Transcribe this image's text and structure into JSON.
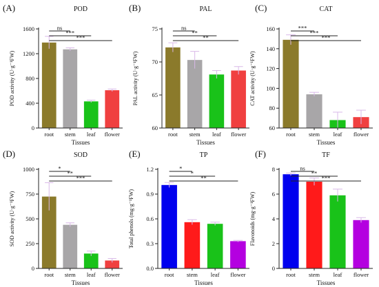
{
  "chart_data": [
    {
      "type": "bar",
      "panel": "(A)",
      "title": "POD",
      "xlabel": "Tissues",
      "ylabel": "POD activity (U·g⁻¹FW)",
      "ylim": [
        0,
        1600
      ],
      "yticks": [
        0,
        400,
        800,
        1200,
        1600
      ],
      "categories": [
        "root",
        "stem",
        "leaf",
        "flower"
      ],
      "category_colors": [
        "#111111",
        "#111111",
        "#0a8f0a",
        "#c0005a"
      ],
      "bar_colors": [
        "#8b7a2b",
        "#a8a6a8",
        "#19c219",
        "#f04040"
      ],
      "values": [
        1380,
        1270,
        430,
        610
      ],
      "errors": [
        100,
        25,
        20,
        20
      ],
      "significance": [
        {
          "from": "root",
          "to": "stem",
          "label": "ns"
        },
        {
          "from": "root",
          "to": "leaf",
          "label": "***"
        },
        {
          "from": "root",
          "to": "flower",
          "label": "***"
        }
      ]
    },
    {
      "type": "bar",
      "panel": "(B)",
      "title": "PAL",
      "xlabel": "Tissues",
      "ylabel": "PAL activity (U·g⁻¹FW)",
      "ylim": [
        60,
        75
      ],
      "yticks": [
        60,
        65,
        70,
        75
      ],
      "categories": [
        "root",
        "stem",
        "leaf",
        "flower"
      ],
      "category_colors": [
        "#111111",
        "#111111",
        "#0a8f0a",
        "#c0005a"
      ],
      "bar_colors": [
        "#8b7a2b",
        "#a8a6a8",
        "#19c219",
        "#f04040"
      ],
      "values": [
        72.2,
        70.3,
        68.1,
        68.7
      ],
      "errors": [
        0.7,
        1.3,
        0.6,
        0.6
      ],
      "significance": [
        {
          "from": "root",
          "to": "stem",
          "label": "ns"
        },
        {
          "from": "root",
          "to": "leaf",
          "label": "**"
        },
        {
          "from": "root",
          "to": "flower",
          "label": "**"
        }
      ]
    },
    {
      "type": "bar",
      "panel": "(C)",
      "title": "CAT",
      "xlabel": "Tissues",
      "ylabel": "CAT activity (U·g⁻¹FW)",
      "ylim": [
        60,
        160
      ],
      "yticks": [
        60,
        80,
        100,
        120,
        140,
        160
      ],
      "categories": [
        "root",
        "stem",
        "leaf",
        "flower"
      ],
      "category_colors": [
        "#111111",
        "#111111",
        "#0a8f0a",
        "#c0005a"
      ],
      "bar_colors": [
        "#8b7a2b",
        "#a8a6a8",
        "#19c219",
        "#f04040"
      ],
      "values": [
        149,
        94,
        68,
        71
      ],
      "errors": [
        5,
        2,
        8,
        7
      ],
      "significance": [
        {
          "from": "root",
          "to": "stem",
          "label": "***"
        },
        {
          "from": "root",
          "to": "leaf",
          "label": "***"
        },
        {
          "from": "root",
          "to": "flower",
          "label": "***"
        }
      ]
    },
    {
      "type": "bar",
      "panel": "(D)",
      "title": "SOD",
      "xlabel": "Tissues",
      "ylabel": "SOD activity (U·g⁻¹FW)",
      "ylim": [
        0,
        1000
      ],
      "yticks": [
        0,
        250,
        500,
        750,
        1000
      ],
      "categories": [
        "root",
        "stem",
        "leaf",
        "flower"
      ],
      "category_colors": [
        "#111111",
        "#111111",
        "#0a8f0a",
        "#c0005a"
      ],
      "bar_colors": [
        "#8b7a2b",
        "#a8a6a8",
        "#19c219",
        "#f04040"
      ],
      "values": [
        725,
        440,
        150,
        80
      ],
      "errors": [
        140,
        20,
        25,
        20
      ],
      "significance": [
        {
          "from": "root",
          "to": "stem",
          "label": "*"
        },
        {
          "from": "root",
          "to": "leaf",
          "label": "**"
        },
        {
          "from": "root",
          "to": "flower",
          "label": "***"
        }
      ]
    },
    {
      "type": "bar",
      "panel": "(E)",
      "title": "TP",
      "xlabel": "Tissues",
      "ylabel": "Total phenols (mg·g⁻¹FW)",
      "ylim": [
        0,
        1.2
      ],
      "yticks": [
        0.0,
        0.3,
        0.6,
        0.9,
        1.2
      ],
      "ytick_labels": [
        "0.0",
        "0.3",
        "0.6",
        "0.9",
        "1.2"
      ],
      "categories": [
        "root",
        "stem",
        "leaf",
        "flower"
      ],
      "category_colors": [
        "#111111",
        "#c0005a",
        "#0a8f0a",
        "#c0005a"
      ],
      "bar_colors": [
        "#0000ee",
        "#ff1a1a",
        "#19c219",
        "#b400e0"
      ],
      "values": [
        1.01,
        0.56,
        0.54,
        0.33
      ],
      "errors": [
        0.03,
        0.03,
        0.02,
        0.01
      ],
      "significance": [
        {
          "from": "root",
          "to": "stem",
          "label": "*"
        },
        {
          "from": "root",
          "to": "leaf",
          "label": "*"
        },
        {
          "from": "root",
          "to": "flower",
          "label": "**"
        }
      ]
    },
    {
      "type": "bar",
      "panel": "(F)",
      "title": "TF",
      "xlabel": "Tissues",
      "ylabel": "Flavonoids (mg·g⁻¹FW)",
      "ylim": [
        0,
        8
      ],
      "yticks": [
        0,
        2,
        4,
        6,
        8
      ],
      "categories": [
        "root",
        "stem",
        "leaf",
        "flower"
      ],
      "category_colors": [
        "#111111",
        "#c0005a",
        "#0a8f0a",
        "#c0005a"
      ],
      "bar_colors": [
        "#0000ee",
        "#ff1a1a",
        "#19c219",
        "#b400e0"
      ],
      "values": [
        7.6,
        7.0,
        5.9,
        3.9
      ],
      "errors": [
        0.1,
        0.3,
        0.5,
        0.2
      ],
      "significance": [
        {
          "from": "root",
          "to": "stem",
          "label": "ns"
        },
        {
          "from": "root",
          "to": "leaf",
          "label": "**"
        },
        {
          "from": "root",
          "to": "flower",
          "label": "***"
        }
      ]
    }
  ]
}
